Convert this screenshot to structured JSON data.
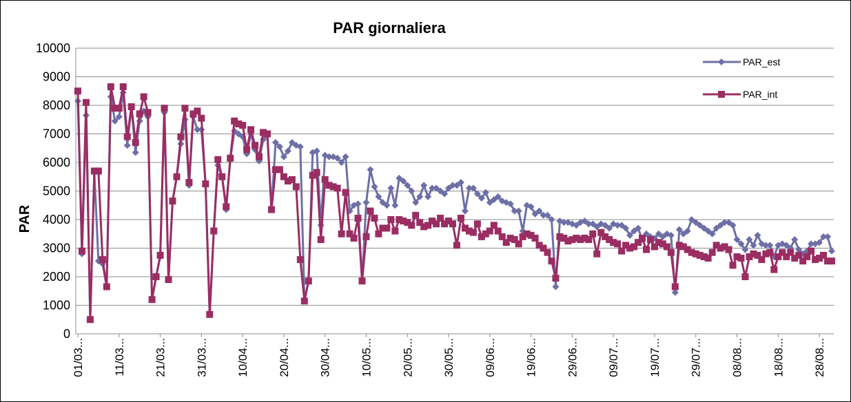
{
  "chart_data": {
    "type": "line",
    "title": "PAR giornaliera",
    "y_label": "PAR",
    "categories": [
      "01/03...",
      null,
      null,
      null,
      null,
      null,
      null,
      null,
      null,
      null,
      "11/03...",
      null,
      null,
      null,
      null,
      null,
      null,
      null,
      null,
      null,
      "21/03...",
      null,
      null,
      null,
      null,
      null,
      null,
      null,
      null,
      null,
      "31/03...",
      null,
      null,
      null,
      null,
      null,
      null,
      null,
      null,
      null,
      "10/04...",
      null,
      null,
      null,
      null,
      null,
      null,
      null,
      null,
      null,
      "20/04...",
      null,
      null,
      null,
      null,
      null,
      null,
      null,
      null,
      null,
      "30/04...",
      null,
      null,
      null,
      null,
      null,
      null,
      null,
      null,
      null,
      "10/05...",
      null,
      null,
      null,
      null,
      null,
      null,
      null,
      null,
      null,
      "20/05...",
      null,
      null,
      null,
      null,
      null,
      null,
      null,
      null,
      null,
      "30/05...",
      null,
      null,
      null,
      null,
      null,
      null,
      null,
      null,
      null,
      "09/06...",
      null,
      null,
      null,
      null,
      null,
      null,
      null,
      null,
      null,
      "19/06...",
      null,
      null,
      null,
      null,
      null,
      null,
      null,
      null,
      null,
      "29/06...",
      null,
      null,
      null,
      null,
      null,
      null,
      null,
      null,
      null,
      "09/07...",
      null,
      null,
      null,
      null,
      null,
      null,
      null,
      null,
      null,
      "19/07...",
      null,
      null,
      null,
      null,
      null,
      null,
      null,
      null,
      null,
      "29/07...",
      null,
      null,
      null,
      null,
      null,
      null,
      null,
      null,
      null,
      "08/08...",
      null,
      null,
      null,
      null,
      null,
      null,
      null,
      null,
      null,
      "18/08...",
      null,
      null,
      null,
      null,
      null,
      null,
      null,
      null,
      null,
      "28/08...",
      null,
      null,
      null
    ],
    "series": [
      {
        "name": "PAR_est",
        "color": "#6d6fa6",
        "marker": "diamond",
        "values": [
          8150,
          2800,
          7650,
          500,
          5650,
          2550,
          2450,
          1650,
          8300,
          7450,
          7600,
          8450,
          6600,
          7950,
          6350,
          7450,
          7800,
          7600,
          1200,
          2000,
          2700,
          7750,
          1900,
          4650,
          5500,
          6650,
          7500,
          5200,
          7600,
          7150,
          7150,
          5250,
          680,
          3600,
          5900,
          5500,
          4350,
          6100,
          7100,
          7000,
          6900,
          6300,
          7000,
          6450,
          6050,
          6800,
          6950,
          4350,
          6700,
          6550,
          6200,
          6400,
          6700,
          6600,
          6550,
          1150,
          1850,
          6350,
          6400,
          3800,
          6250,
          6200,
          6200,
          6150,
          6000,
          6200,
          4300,
          4500,
          4550,
          1850,
          4600,
          5750,
          5150,
          4800,
          4600,
          4500,
          5100,
          4500,
          5450,
          5350,
          5200,
          5000,
          4600,
          4800,
          5200,
          4800,
          5100,
          5100,
          5000,
          4900,
          5100,
          5200,
          5200,
          5300,
          4300,
          5100,
          5100,
          4900,
          4750,
          4950,
          4600,
          4700,
          4800,
          4650,
          4600,
          4550,
          4300,
          4300,
          3600,
          4500,
          4450,
          4200,
          4300,
          4150,
          4150,
          4000,
          1650,
          3950,
          3900,
          3900,
          3850,
          3800,
          3900,
          3950,
          3850,
          3850,
          3750,
          3850,
          3800,
          3700,
          3850,
          3800,
          3800,
          3700,
          3450,
          3600,
          3700,
          3300,
          3500,
          3400,
          3350,
          3500,
          3400,
          3500,
          3450,
          1450,
          3650,
          3500,
          3600,
          4000,
          3900,
          3800,
          3700,
          3600,
          3500,
          3700,
          3800,
          3900,
          3900,
          3800,
          3300,
          3150,
          2950,
          3300,
          3100,
          3450,
          3150,
          3100,
          3100,
          2700,
          3100,
          3150,
          3100,
          3000,
          3300,
          2950,
          2800,
          2900,
          3150,
          3150,
          3200,
          3400,
          3400,
          2900
        ]
      },
      {
        "name": "PAR_int",
        "color": "#9a2d62",
        "marker": "square",
        "values": [
          8500,
          2900,
          8100,
          500,
          5700,
          5700,
          2600,
          1650,
          8650,
          7900,
          7900,
          8650,
          6900,
          7950,
          6700,
          7700,
          8300,
          7750,
          1200,
          2000,
          2750,
          7900,
          1900,
          4650,
          5500,
          6900,
          7900,
          5300,
          7700,
          7800,
          7550,
          5250,
          680,
          3600,
          6100,
          5500,
          4450,
          6150,
          7450,
          7350,
          7300,
          6450,
          7150,
          6600,
          6200,
          7050,
          7000,
          4350,
          5750,
          5750,
          5500,
          5350,
          5400,
          5150,
          2600,
          1150,
          1850,
          5550,
          5650,
          3300,
          5400,
          5200,
          5150,
          5100,
          3500,
          4950,
          3500,
          3350,
          4050,
          1850,
          3400,
          4300,
          4050,
          3500,
          3700,
          3700,
          4000,
          3600,
          4000,
          3950,
          3900,
          3800,
          4150,
          3900,
          3750,
          3800,
          3950,
          3850,
          4050,
          3850,
          3950,
          3850,
          3100,
          4050,
          3700,
          3600,
          3550,
          3850,
          3400,
          3500,
          3600,
          3800,
          3600,
          3400,
          3200,
          3350,
          3300,
          3150,
          3400,
          3500,
          3450,
          3350,
          3100,
          3000,
          2850,
          2550,
          1950,
          3400,
          3350,
          3250,
          3300,
          3350,
          3300,
          3350,
          3300,
          3500,
          2800,
          3550,
          3400,
          3300,
          3200,
          3150,
          2900,
          3100,
          3000,
          3050,
          3200,
          3350,
          2950,
          3300,
          3050,
          3200,
          3150,
          3050,
          2850,
          1650,
          3100,
          3050,
          2950,
          2850,
          2800,
          2750,
          2700,
          2650,
          2850,
          3100,
          3000,
          3050,
          2950,
          2400,
          2700,
          2650,
          2000,
          2700,
          2800,
          2750,
          2600,
          2800,
          2850,
          2250,
          2700,
          2850,
          2700,
          2850,
          2650,
          2750,
          2550,
          2700,
          2900,
          2600,
          2650,
          2750,
          2550,
          2550
        ]
      }
    ],
    "ylim": [
      0,
      10000
    ],
    "yticks": [
      0,
      1000,
      2000,
      3000,
      4000,
      5000,
      6000,
      7000,
      8000,
      9000,
      10000
    ],
    "grid": true,
    "legend": "top-right"
  }
}
